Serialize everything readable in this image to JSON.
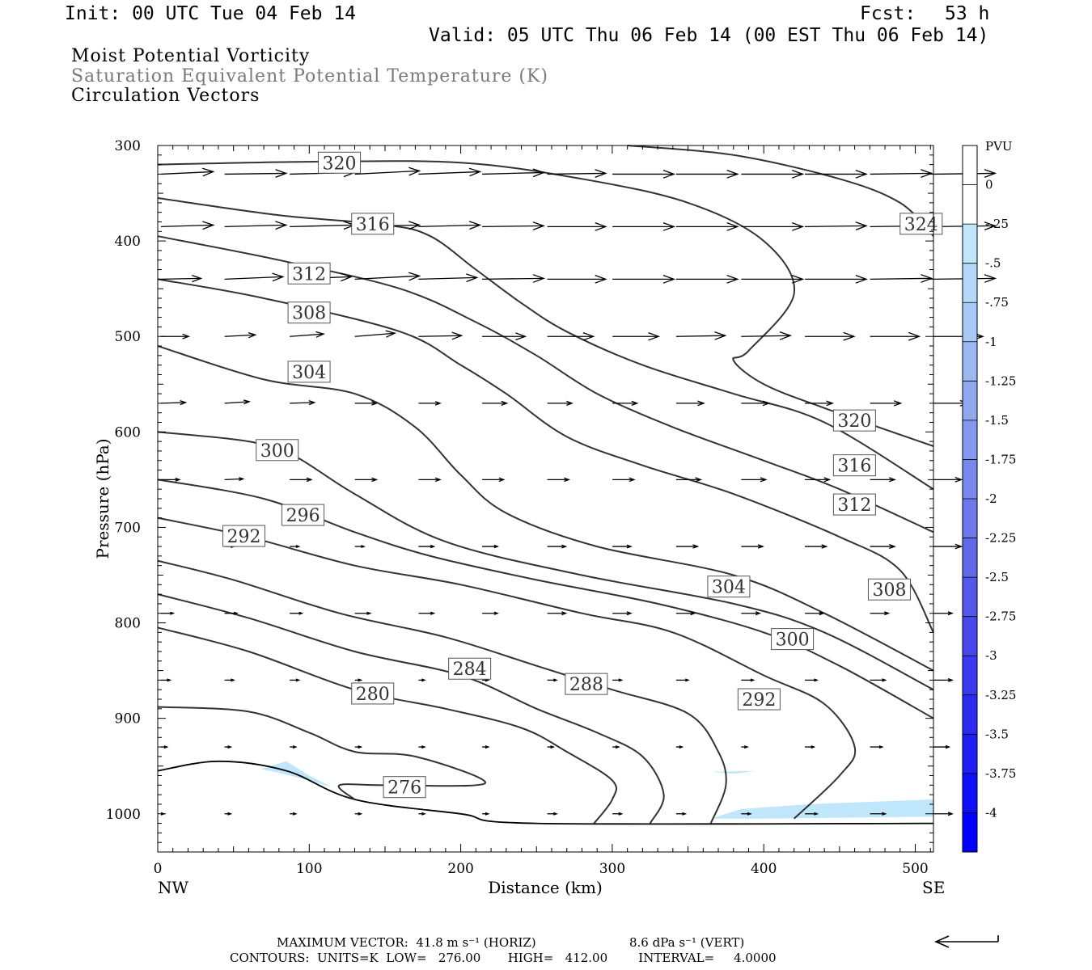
{
  "header": {
    "init": "Init: 00 UTC Tue 04 Feb 14",
    "fcst_label": "Fcst:",
    "fcst_value": "53 h",
    "valid": "Valid: 05 UTC Thu 06 Feb 14 (00 EST Thu 06 Feb 14)"
  },
  "legend_titles": {
    "line1": "Moist Potential Vorticity",
    "line2": "Saturation Equivalent Potential Temperature (K)",
    "line3": "Circulation Vectors"
  },
  "colorbar": {
    "title": "PVU",
    "labels": [
      "0",
      "-.25",
      "-.5",
      "-.75",
      "-1",
      "-1.25",
      "-1.5",
      "-1.75",
      "-2",
      "-2.25",
      "-2.5",
      "-2.75",
      "-3",
      "-3.25",
      "-3.5",
      "-3.75",
      "-4"
    ],
    "colors": [
      "#ffffff",
      "#ffffff",
      "#bfe6fb",
      "#b4d8f8",
      "#a8c8f5",
      "#9cb8f2",
      "#90a8f0",
      "#8498ee",
      "#7888ec",
      "#6c78ea",
      "#6068ea",
      "#5458ea",
      "#4848ec",
      "#3a3aee",
      "#2c2cf0",
      "#1e1ef4",
      "#0f0ff8",
      "#0000ff"
    ]
  },
  "footer": {
    "max_vector": "MAXIMUM VECTOR:  41.8 m s⁻¹ (HORIZ)",
    "max_vert": "8.6 dPa s⁻¹ (VERT)",
    "contours": "CONTOURS:  UNITS=K  LOW=   276.00       HIGH=   412.00        INTERVAL=     4.0000"
  },
  "chart_data": {
    "type": "contour-cross-section",
    "xlabel": "Distance (km)",
    "ylabel": "Pressure (hPa)",
    "xlim": [
      0,
      512
    ],
    "ylim": [
      1040,
      300
    ],
    "x_ticks": [
      "0",
      "100",
      "200",
      "300",
      "400",
      "500"
    ],
    "x_tick_values": [
      0,
      100,
      200,
      300,
      400,
      500
    ],
    "y_ticks": [
      "300",
      "400",
      "500",
      "600",
      "700",
      "800",
      "900",
      "1000"
    ],
    "y_tick_values": [
      300,
      400,
      500,
      600,
      700,
      800,
      900,
      1000
    ],
    "left_endpoint": "NW",
    "right_endpoint": "SE",
    "contour_interval_K": 4,
    "contours": [
      {
        "level": 324,
        "points": [
          [
            310,
            300
          ],
          [
            380,
            310
          ],
          [
            450,
            335
          ],
          [
            490,
            360
          ],
          [
            512,
            395
          ]
        ]
      },
      {
        "level": 320,
        "points": [
          [
            0,
            320
          ],
          [
            100,
            317
          ],
          [
            200,
            318
          ],
          [
            280,
            335
          ],
          [
            350,
            360
          ],
          [
            400,
            400
          ],
          [
            420,
            455
          ],
          [
            390,
            515
          ],
          [
            380,
            525
          ],
          [
            400,
            550
          ],
          [
            440,
            575
          ],
          [
            512,
            615
          ]
        ]
      },
      {
        "level": 316,
        "points": [
          [
            0,
            355
          ],
          [
            80,
            373
          ],
          [
            150,
            383
          ],
          [
            180,
            395
          ],
          [
            210,
            430
          ],
          [
            240,
            465
          ],
          [
            270,
            495
          ],
          [
            320,
            530
          ],
          [
            380,
            560
          ],
          [
            440,
            590
          ],
          [
            512,
            660
          ]
        ]
      },
      {
        "level": 312,
        "points": [
          [
            0,
            395
          ],
          [
            80,
            420
          ],
          [
            160,
            450
          ],
          [
            210,
            485
          ],
          [
            250,
            520
          ],
          [
            290,
            560
          ],
          [
            340,
            595
          ],
          [
            400,
            630
          ],
          [
            450,
            660
          ],
          [
            512,
            705
          ]
        ]
      },
      {
        "level": 308,
        "points": [
          [
            0,
            440
          ],
          [
            70,
            460
          ],
          [
            160,
            495
          ],
          [
            200,
            530
          ],
          [
            230,
            560
          ],
          [
            270,
            605
          ],
          [
            320,
            635
          ],
          [
            380,
            665
          ],
          [
            450,
            710
          ],
          [
            490,
            745
          ],
          [
            512,
            810
          ]
        ]
      },
      {
        "level": 304,
        "points": [
          [
            0,
            510
          ],
          [
            70,
            545
          ],
          [
            130,
            560
          ],
          [
            170,
            595
          ],
          [
            200,
            645
          ],
          [
            230,
            685
          ],
          [
            290,
            720
          ],
          [
            380,
            750
          ],
          [
            440,
            790
          ],
          [
            512,
            850
          ]
        ]
      },
      {
        "level": 300,
        "points": [
          [
            0,
            600
          ],
          [
            60,
            610
          ],
          [
            90,
            625
          ],
          [
            130,
            665
          ],
          [
            190,
            715
          ],
          [
            280,
            750
          ],
          [
            380,
            780
          ],
          [
            440,
            810
          ],
          [
            512,
            870
          ]
        ]
      },
      {
        "level": 296,
        "points": [
          [
            0,
            650
          ],
          [
            70,
            670
          ],
          [
            130,
            705
          ],
          [
            180,
            730
          ],
          [
            250,
            755
          ],
          [
            330,
            780
          ],
          [
            400,
            810
          ],
          [
            450,
            845
          ],
          [
            512,
            900
          ]
        ]
      },
      {
        "level": 292,
        "points": [
          [
            0,
            690
          ],
          [
            60,
            710
          ],
          [
            130,
            740
          ],
          [
            200,
            760
          ],
          [
            280,
            790
          ],
          [
            340,
            810
          ],
          [
            400,
            855
          ],
          [
            440,
            885
          ],
          [
            460,
            930
          ],
          [
            450,
            960
          ],
          [
            420,
            1005
          ]
        ]
      },
      {
        "level": 288,
        "points": [
          [
            0,
            735
          ],
          [
            50,
            755
          ],
          [
            120,
            790
          ],
          [
            190,
            815
          ],
          [
            250,
            845
          ],
          [
            300,
            870
          ],
          [
            350,
            895
          ],
          [
            370,
            935
          ],
          [
            375,
            970
          ],
          [
            365,
            1010
          ]
        ]
      },
      {
        "level": 284,
        "points": [
          [
            0,
            770
          ],
          [
            60,
            795
          ],
          [
            130,
            830
          ],
          [
            200,
            855
          ],
          [
            250,
            890
          ],
          [
            290,
            915
          ],
          [
            320,
            940
          ],
          [
            334,
            980
          ],
          [
            325,
            1010
          ]
        ]
      },
      {
        "level": 280,
        "points": [
          [
            0,
            805
          ],
          [
            60,
            830
          ],
          [
            130,
            870
          ],
          [
            190,
            890
          ],
          [
            240,
            910
          ],
          [
            270,
            935
          ],
          [
            300,
            965
          ],
          [
            300,
            985
          ],
          [
            288,
            1010
          ]
        ]
      },
      {
        "level": 276,
        "points": [
          [
            0,
            888
          ],
          [
            60,
            893
          ],
          [
            100,
            915
          ],
          [
            130,
            935
          ],
          [
            170,
            940
          ],
          [
            216,
            968
          ],
          [
            150,
            970
          ],
          [
            120,
            970
          ],
          [
            130,
            985
          ]
        ]
      }
    ],
    "contour_labels": [
      {
        "text": "324",
        "x": 490,
        "p": 382
      },
      {
        "text": "320",
        "x": 106,
        "p": 318
      },
      {
        "text": "316",
        "x": 128,
        "p": 382
      },
      {
        "text": "312",
        "x": 86,
        "p": 434
      },
      {
        "text": "308",
        "x": 86,
        "p": 475
      },
      {
        "text": "304",
        "x": 86,
        "p": 537
      },
      {
        "text": "300",
        "x": 65,
        "p": 619
      },
      {
        "text": "296",
        "x": 82,
        "p": 687
      },
      {
        "text": "292",
        "x": 43,
        "p": 709
      },
      {
        "text": "284",
        "x": 192,
        "p": 848
      },
      {
        "text": "280",
        "x": 128,
        "p": 874
      },
      {
        "text": "276",
        "x": 149,
        "p": 972
      },
      {
        "text": "288",
        "x": 269,
        "p": 864
      },
      {
        "text": "304",
        "x": 363,
        "p": 762
      },
      {
        "text": "300",
        "x": 405,
        "p": 817
      },
      {
        "text": "292",
        "x": 383,
        "p": 880
      },
      {
        "text": "308",
        "x": 469,
        "p": 765
      },
      {
        "text": "320",
        "x": 446,
        "p": 588
      },
      {
        "text": "316",
        "x": 446,
        "p": 635
      },
      {
        "text": "312",
        "x": 446,
        "p": 676
      }
    ],
    "negative_pv_regions": [
      {
        "color": "#bfe6fb",
        "points": [
          [
            68,
            953
          ],
          [
            85,
            945
          ],
          [
            100,
            960
          ],
          [
            115,
            972
          ],
          [
            95,
            963
          ],
          [
            80,
            957
          ]
        ]
      },
      {
        "color": "#bfe6fb",
        "points": [
          [
            365,
            1005
          ],
          [
            385,
            995
          ],
          [
            430,
            990
          ],
          [
            512,
            985
          ],
          [
            512,
            1003
          ],
          [
            400,
            1005
          ]
        ]
      },
      {
        "color": "#bfe6fb",
        "points": [
          [
            365,
            956
          ],
          [
            395,
            955
          ],
          [
            380,
            958
          ]
        ]
      }
    ],
    "vector_levels_hPa": [
      330,
      385,
      440,
      500,
      570,
      650,
      720,
      790,
      860,
      930,
      1000
    ],
    "vector_x_km": [
      0,
      42,
      85,
      128,
      170,
      212,
      255,
      298,
      340,
      383,
      425,
      468,
      510
    ],
    "vectors": [
      [
        [
          34,
          -3
        ],
        [
          40,
          -1
        ],
        [
          42,
          -2
        ],
        [
          42,
          -4
        ],
        [
          40,
          -3
        ],
        [
          40,
          -2
        ],
        [
          38,
          -1
        ],
        [
          40,
          0
        ],
        [
          40,
          0
        ],
        [
          40,
          0
        ],
        [
          40,
          0
        ],
        [
          40,
          -1
        ],
        [
          40,
          -1
        ]
      ],
      [
        [
          34,
          -2
        ],
        [
          40,
          -2
        ],
        [
          42,
          -2
        ],
        [
          42,
          -2
        ],
        [
          40,
          -2
        ],
        [
          40,
          -1
        ],
        [
          38,
          0
        ],
        [
          40,
          0
        ],
        [
          40,
          0
        ],
        [
          40,
          0
        ],
        [
          40,
          -1
        ],
        [
          40,
          -1
        ],
        [
          40,
          -1
        ]
      ],
      [
        [
          26,
          -1
        ],
        [
          38,
          -3
        ],
        [
          40,
          -3
        ],
        [
          42,
          -4
        ],
        [
          38,
          -2
        ],
        [
          40,
          -1
        ],
        [
          38,
          0
        ],
        [
          40,
          0
        ],
        [
          40,
          0
        ],
        [
          40,
          0
        ],
        [
          40,
          0
        ],
        [
          40,
          -1
        ],
        [
          40,
          -1
        ]
      ],
      [
        [
          18,
          0
        ],
        [
          20,
          -2
        ],
        [
          22,
          -3
        ],
        [
          26,
          -4
        ],
        [
          28,
          -1
        ],
        [
          28,
          0
        ],
        [
          30,
          0
        ],
        [
          30,
          0
        ],
        [
          32,
          -1
        ],
        [
          32,
          -1
        ],
        [
          32,
          0
        ],
        [
          32,
          0
        ],
        [
          32,
          0
        ]
      ],
      [
        [
          16,
          -1
        ],
        [
          16,
          -2
        ],
        [
          16,
          -1
        ],
        [
          14,
          0
        ],
        [
          14,
          0
        ],
        [
          16,
          0
        ],
        [
          16,
          0
        ],
        [
          16,
          0
        ],
        [
          18,
          0
        ],
        [
          18,
          0
        ],
        [
          18,
          0
        ],
        [
          20,
          0
        ],
        [
          22,
          0
        ]
      ],
      [
        [
          12,
          0
        ],
        [
          12,
          -1
        ],
        [
          14,
          0
        ],
        [
          14,
          0
        ],
        [
          14,
          0
        ],
        [
          14,
          0
        ],
        [
          14,
          0
        ],
        [
          14,
          0
        ],
        [
          16,
          0
        ],
        [
          16,
          0
        ],
        [
          16,
          0
        ],
        [
          16,
          0
        ],
        [
          18,
          0
        ]
      ],
      [
        [
          0,
          0
        ],
        [
          6,
          0
        ],
        [
          6,
          0
        ],
        [
          6,
          0
        ],
        [
          10,
          0
        ],
        [
          10,
          0
        ],
        [
          12,
          0
        ],
        [
          12,
          0
        ],
        [
          14,
          0
        ],
        [
          14,
          0
        ],
        [
          14,
          0
        ],
        [
          16,
          0
        ],
        [
          18,
          0
        ]
      ],
      [
        [
          8,
          0
        ],
        [
          8,
          0
        ],
        [
          8,
          0
        ],
        [
          10,
          0
        ],
        [
          10,
          0
        ],
        [
          10,
          0
        ],
        [
          12,
          0
        ],
        [
          12,
          0
        ],
        [
          12,
          0
        ],
        [
          12,
          0
        ],
        [
          12,
          0
        ],
        [
          12,
          0
        ],
        [
          12,
          0
        ]
      ],
      [
        [
          6,
          0
        ],
        [
          6,
          0
        ],
        [
          6,
          0
        ],
        [
          4,
          0
        ],
        [
          4,
          0
        ],
        [
          4,
          0
        ],
        [
          6,
          0
        ],
        [
          6,
          0
        ],
        [
          8,
          0
        ],
        [
          8,
          0
        ],
        [
          8,
          0
        ],
        [
          10,
          0
        ],
        [
          12,
          0
        ]
      ],
      [
        [
          4,
          0
        ],
        [
          4,
          0
        ],
        [
          4,
          0
        ],
        [
          4,
          0
        ],
        [
          4,
          0
        ],
        [
          4,
          0
        ],
        [
          4,
          0
        ],
        [
          4,
          0
        ],
        [
          4,
          0
        ],
        [
          4,
          0
        ],
        [
          6,
          0
        ],
        [
          8,
          0
        ],
        [
          10,
          0
        ]
      ],
      [
        [
          2,
          0
        ],
        [
          4,
          0
        ],
        [
          4,
          0
        ],
        [
          4,
          0
        ],
        [
          4,
          0
        ],
        [
          4,
          0
        ],
        [
          6,
          0
        ],
        [
          6,
          0
        ],
        [
          6,
          0
        ],
        [
          6,
          0
        ],
        [
          8,
          0
        ],
        [
          10,
          0
        ],
        [
          12,
          0
        ]
      ]
    ]
  }
}
